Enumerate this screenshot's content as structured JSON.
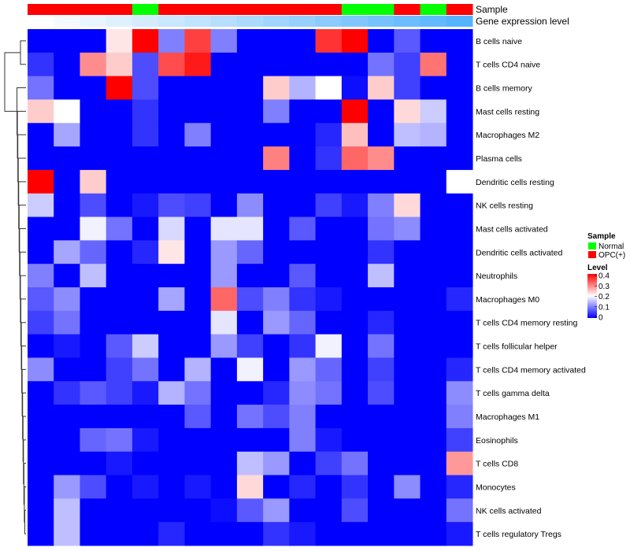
{
  "chart_data": {
    "type": "heatmap",
    "annotation_labels": {
      "sample": "Sample",
      "gene_expression": "Gene expression level"
    },
    "column_samples": [
      "OPC(+)",
      "OPC(+)",
      "OPC(+)",
      "OPC(+)",
      "Normal",
      "OPC(+)",
      "OPC(+)",
      "OPC(+)",
      "OPC(+)",
      "OPC(+)",
      "OPC(+)",
      "OPC(+)",
      "Normal",
      "Normal",
      "OPC(+)",
      "Normal",
      "OPC(+)"
    ],
    "gene_expression_levels": [
      1,
      2,
      3,
      4,
      5,
      6,
      7,
      8,
      9,
      10,
      11,
      12,
      13,
      14,
      15,
      16,
      17
    ],
    "rows": [
      "B cells naive",
      "T cells CD4 naive",
      "B cells memory",
      "Mast cells resting",
      "Macrophages M2",
      "Plasma cells",
      "Dendritic cells resting",
      "NK cells resting",
      "Mast cells activated",
      "Dendritic cells activated",
      "Neutrophils",
      "Macrophages M0",
      "T cells CD4 memory resting",
      "T cells follicular helper",
      "T cells CD4 memory activated",
      "T cells gamma delta",
      "Macrophages M1",
      "Eosinophils",
      "T cells CD8",
      "Monocytes",
      "NK cells activated",
      "T cells regulatory  Tregs"
    ],
    "values": [
      [
        0,
        0,
        0,
        0.22,
        0.4,
        0.1,
        0.35,
        0.1,
        0,
        0,
        0,
        0.36,
        0.4,
        0,
        0.07,
        0,
        0
      ],
      [
        0.04,
        0,
        0.29,
        0.24,
        0.06,
        0.34,
        0.38,
        0,
        0,
        0,
        0,
        0,
        0,
        0.09,
        0.05,
        0.31,
        0
      ],
      [
        0.09,
        0,
        0,
        0.4,
        0.06,
        0,
        0,
        0,
        0,
        0.24,
        0.14,
        0.2,
        0.01,
        0.24,
        0.05,
        0,
        0
      ],
      [
        0.24,
        0.2,
        0,
        0,
        0.04,
        0,
        0,
        0,
        0,
        0.1,
        0,
        0,
        0.4,
        0,
        0.23,
        0.16,
        0
      ],
      [
        0,
        0.13,
        0,
        0,
        0.04,
        0,
        0.1,
        0,
        0,
        0,
        0,
        0.03,
        0.25,
        0,
        0.15,
        0.14,
        0
      ],
      [
        0,
        0,
        0,
        0,
        0,
        0,
        0,
        0,
        0,
        0.3,
        0,
        0.04,
        0.32,
        0.29,
        0,
        0,
        0
      ],
      [
        0.4,
        0,
        0.24,
        0,
        0,
        0,
        0,
        0,
        0,
        0,
        0,
        0,
        0,
        0,
        0,
        0,
        0.2
      ],
      [
        0.16,
        0,
        0.06,
        0,
        0.02,
        0.06,
        0.05,
        0,
        0.11,
        0,
        0,
        0.05,
        0.02,
        0.1,
        0.23,
        0,
        0
      ],
      [
        0,
        0,
        0.19,
        0.09,
        0,
        0.17,
        0,
        0.18,
        0.18,
        0,
        0.07,
        0,
        0,
        0.09,
        0.11,
        0,
        0
      ],
      [
        0,
        0.13,
        0.08,
        0,
        0.03,
        0.22,
        0,
        0.12,
        0.08,
        0,
        0,
        0,
        0,
        0.04,
        0,
        0,
        0
      ],
      [
        0.1,
        0,
        0.15,
        0,
        0,
        0,
        0,
        0.12,
        0,
        0,
        0.07,
        0,
        0,
        0.15,
        0,
        0,
        0
      ],
      [
        0.07,
        0.11,
        0,
        0,
        0,
        0.13,
        0,
        0.32,
        0.06,
        0.1,
        0.04,
        0.02,
        0,
        0,
        0,
        0,
        0.03
      ],
      [
        0.05,
        0.09,
        0,
        0,
        0,
        0,
        0,
        0.18,
        0,
        0.12,
        0.08,
        0,
        0,
        0.03,
        0,
        0,
        0
      ],
      [
        0,
        0.02,
        0,
        0.07,
        0.16,
        0,
        0,
        0.12,
        0.05,
        0,
        0.04,
        0.19,
        0,
        0.09,
        0,
        0,
        0
      ],
      [
        0.11,
        0,
        0,
        0.05,
        0.09,
        0,
        0.14,
        0,
        0.19,
        0,
        0.12,
        0.08,
        0,
        0.05,
        0,
        0,
        0.03
      ],
      [
        0,
        0.04,
        0.07,
        0.05,
        0.02,
        0.14,
        0.09,
        0,
        0,
        0.03,
        0.11,
        0.09,
        0,
        0.06,
        0,
        0,
        0.11
      ],
      [
        0,
        0,
        0,
        0,
        0,
        0,
        0.07,
        0,
        0.09,
        0.06,
        0.1,
        0,
        0,
        0,
        0,
        0,
        0.1
      ],
      [
        0,
        0,
        0.08,
        0.09,
        0.02,
        0,
        0,
        0,
        0,
        0,
        0.1,
        0.02,
        0,
        0,
        0,
        0,
        0.05
      ],
      [
        0,
        0,
        0,
        0.02,
        0,
        0,
        0,
        0,
        0.15,
        0.12,
        0,
        0.05,
        0.09,
        0,
        0,
        0,
        0.28
      ],
      [
        0,
        0.12,
        0.06,
        0,
        0.02,
        0,
        0.02,
        0,
        0.23,
        0,
        0.03,
        0,
        0.04,
        0,
        0.11,
        0,
        0.03
      ],
      [
        0,
        0.15,
        0,
        0,
        0,
        0,
        0,
        0.01,
        0.07,
        0.12,
        0,
        0,
        0.06,
        0,
        0,
        0,
        0.09
      ],
      [
        0,
        0.15,
        0,
        0,
        0,
        0.03,
        0,
        0,
        0,
        0.04,
        0.02,
        0,
        0,
        0,
        0,
        0,
        0.02
      ]
    ],
    "color_scale": {
      "min": 0,
      "max": 0.4,
      "low": "#0000FF",
      "mid": "#FFFFFF",
      "high": "#FF0000"
    },
    "dendrogram": "rows clustered (hierarchical)"
  },
  "legend": {
    "sample_title": "Sample",
    "sample_entries": [
      {
        "label": "Normal",
        "color": "#00FF00"
      },
      {
        "label": "OPC(+)",
        "color": "#FF0000"
      }
    ],
    "level_title": "Level",
    "level_ticks": [
      "0.4",
      "0.3",
      "0.2",
      "0.1",
      "0"
    ]
  }
}
